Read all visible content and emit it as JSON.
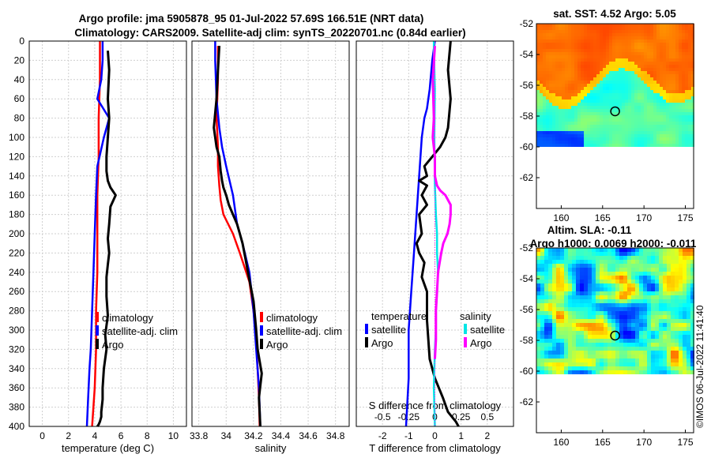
{
  "figure_title_line1": "Argo profile: jma 5905878_95 01-Jul-2022 57.69S 166.51E (NRT data)",
  "figure_title_line2": "Climatology: CARS2009. Satellite-adj clim: synTS_20220701.nc (0.84d earlier)",
  "watermark": "©IMOS 06-Jul-2022 11:41:40",
  "colors": {
    "climatology": "#ff0000",
    "satellite": "#0000ff",
    "argo": "#000000",
    "sat_salinity": "#00e5e5",
    "argo_salinity": "#ff00ff"
  },
  "chart_data": [
    {
      "id": "temperature",
      "type": "line",
      "xlabel": "temperature (deg C)",
      "ylabel": "",
      "xlim": [
        -1,
        11
      ],
      "ylim": [
        400,
        0
      ],
      "xticks": [
        0,
        2,
        4,
        6,
        8,
        10
      ],
      "yticks": [
        0,
        20,
        40,
        60,
        80,
        100,
        120,
        140,
        160,
        180,
        200,
        220,
        240,
        260,
        280,
        300,
        320,
        340,
        360,
        380,
        400
      ],
      "grid": true,
      "legend": {
        "placement": "lower-middle",
        "entries": [
          "climatology",
          "satellite-adj. clim",
          "Argo"
        ]
      },
      "series": [
        {
          "name": "climatology",
          "color": "#ff0000",
          "x": [
            4.4,
            4.4,
            4.3,
            4.3,
            4.2,
            4.2,
            4.2,
            4.1,
            4.1,
            4.0,
            3.8
          ],
          "y": [
            0,
            40,
            80,
            120,
            160,
            200,
            240,
            280,
            320,
            360,
            400
          ]
        },
        {
          "name": "satellite-adj. clim",
          "color": "#0000ff",
          "x": [
            4.6,
            4.6,
            4.5,
            4.2,
            5.1,
            4.7,
            4.2,
            4.1,
            4.0,
            3.9,
            3.8,
            3.7,
            3.6,
            3.5,
            3.4
          ],
          "y": [
            0,
            20,
            40,
            60,
            80,
            100,
            130,
            160,
            200,
            240,
            280,
            320,
            340,
            370,
            400
          ]
        },
        {
          "name": "Argo",
          "color": "#000000",
          "x": [
            5.0,
            5.1,
            5.0,
            5.1,
            5.0,
            4.9,
            4.9,
            5.0,
            5.2,
            5.6,
            5.2,
            5.1,
            5.0,
            5.1,
            5.0,
            4.9,
            4.9,
            5.0,
            4.8,
            4.9,
            4.7,
            4.6,
            4.6,
            4.5,
            4.5,
            4.4,
            4.3,
            4.2
          ],
          "y": [
            10,
            30,
            60,
            80,
            100,
            120,
            135,
            145,
            152,
            160,
            172,
            190,
            205,
            220,
            232,
            245,
            265,
            285,
            305,
            320,
            340,
            360,
            372,
            385,
            390,
            395,
            398,
            400
          ]
        }
      ]
    },
    {
      "id": "salinity",
      "type": "line",
      "xlabel": "salinity",
      "ylabel": "",
      "xlim": [
        33.75,
        34.9
      ],
      "ylim": [
        400,
        0
      ],
      "xticks": [
        33.8,
        34,
        34.2,
        34.4,
        34.6,
        34.8
      ],
      "xticklabels": [
        "33.8",
        "34",
        "34.2",
        "34.4",
        "34.6",
        "34.8"
      ],
      "grid": true,
      "legend": {
        "placement": "lower-right",
        "entries": [
          "climatology",
          "satellite-adj. clim",
          "Argo"
        ]
      },
      "series": [
        {
          "name": "climatology",
          "color": "#ff0000",
          "x": [
            33.94,
            33.94,
            33.93,
            33.94,
            33.94,
            33.95,
            33.96,
            33.98,
            34.05,
            34.1,
            34.17,
            34.2,
            34.22,
            34.23,
            34.24,
            34.245
          ],
          "y": [
            5,
            40,
            80,
            110,
            130,
            150,
            165,
            180,
            200,
            220,
            250,
            280,
            310,
            340,
            370,
            400
          ]
        },
        {
          "name": "satellite-adj. clim",
          "color": "#0000ff",
          "x": [
            33.92,
            33.92,
            33.93,
            33.95,
            33.97,
            34.0,
            34.05,
            34.08,
            34.12,
            34.17,
            34.2,
            34.22,
            34.24,
            34.25
          ],
          "y": [
            0,
            20,
            60,
            90,
            110,
            130,
            160,
            190,
            210,
            240,
            280,
            320,
            360,
            400
          ]
        },
        {
          "name": "Argo",
          "color": "#000000",
          "x": [
            33.95,
            33.94,
            33.93,
            33.91,
            33.93,
            33.95,
            33.96,
            33.97,
            33.98,
            34.0,
            34.02,
            34.05,
            34.08,
            34.1,
            34.12,
            34.14,
            34.16,
            34.2,
            34.22,
            34.23,
            34.26,
            34.24,
            34.25
          ],
          "y": [
            5,
            30,
            60,
            90,
            110,
            120,
            135,
            145,
            152,
            160,
            170,
            180,
            190,
            200,
            210,
            225,
            240,
            270,
            300,
            320,
            345,
            370,
            400
          ]
        }
      ]
    },
    {
      "id": "difference",
      "type": "line",
      "xlabel": "T difference from climatology",
      "top_axis_label": "S difference from climatology",
      "xlim": [
        -3,
        3
      ],
      "top_xlim": [
        -0.75,
        0.75
      ],
      "ylim": [
        400,
        0
      ],
      "xticks": [
        -2,
        -1,
        0,
        1,
        2
      ],
      "xticklabels": [
        "-2",
        "-1",
        "0",
        "1",
        "2"
      ],
      "top_xticks": [
        -0.5,
        -0.25,
        0,
        0.25,
        0.5
      ],
      "top_xticklabels": [
        "-0.5",
        "-0.25",
        "0",
        "0.25",
        "0.5"
      ],
      "grid": true,
      "legend": {
        "placement": "lower-middle",
        "temperature_title": "temperature",
        "salinity_title": "salinity",
        "entries": [
          "satellite",
          "Argo",
          "satellite",
          "Argo"
        ]
      },
      "series": [
        {
          "name": "T satellite",
          "color": "#0000ff",
          "axis": "T",
          "x": [
            0.0,
            -0.1,
            -0.2,
            -0.3,
            -0.4,
            -0.5,
            -0.6,
            -0.7,
            -0.8,
            -0.9,
            -1.0,
            -1.0,
            -1.1
          ],
          "y": [
            0,
            20,
            50,
            70,
            80,
            100,
            140,
            180,
            220,
            260,
            300,
            350,
            400
          ]
        },
        {
          "name": "T Argo",
          "color": "#000000",
          "axis": "T",
          "x": [
            0.6,
            0.5,
            0.6,
            0.5,
            0.4,
            0.2,
            -0.1,
            -0.4,
            -0.3,
            -0.6,
            -0.3,
            -0.5,
            -0.3,
            -0.6,
            -0.5,
            -0.7,
            -0.6,
            -0.4,
            -0.5,
            -0.3,
            -0.3,
            -0.2,
            0.0,
            0.3,
            0.5,
            0.8,
            0.9
          ],
          "y": [
            0,
            30,
            60,
            90,
            100,
            110,
            120,
            130,
            140,
            145,
            150,
            160,
            170,
            180,
            200,
            210,
            220,
            230,
            245,
            260,
            290,
            330,
            350,
            370,
            385,
            395,
            400
          ]
        },
        {
          "name": "S satellite",
          "color": "#00e5e5",
          "axis": "S",
          "x": [
            -0.01,
            -0.01,
            0.0,
            -0.005,
            0.0,
            0.01,
            0.02,
            0.02,
            0.03,
            0.02,
            0.01,
            0.01,
            0.0,
            -0.01,
            0.0
          ],
          "y": [
            0,
            10,
            50,
            100,
            150,
            180,
            200,
            220,
            240,
            260,
            280,
            300,
            320,
            360,
            400
          ]
        },
        {
          "name": "S Argo",
          "color": "#ff00ff",
          "axis": "S",
          "x": [
            0.0,
            -0.02,
            -0.01,
            -0.02,
            0.0,
            0.0,
            0.02,
            0.05,
            0.1,
            0.15,
            0.15,
            0.14,
            0.12,
            0.08,
            0.06,
            0.03,
            0.02,
            0.01,
            0.01,
            0.0
          ],
          "y": [
            5,
            40,
            80,
            100,
            120,
            140,
            150,
            155,
            160,
            170,
            180,
            190,
            200,
            210,
            220,
            240,
            260,
            280,
            310,
            330
          ]
        }
      ]
    },
    {
      "id": "sst_map",
      "type": "heatmap",
      "title": "sat. SST: 4.52 Argo: 5.05",
      "xlim": [
        157,
        176
      ],
      "ylim": [
        -64,
        -52
      ],
      "xticks": [
        160,
        165,
        170,
        175
      ],
      "yticks": [
        -52,
        -54,
        -56,
        -58,
        -60,
        -62
      ],
      "data_rows_lat": [
        -52,
        -60
      ],
      "marker": {
        "lon": 166.51,
        "lat": -57.69
      }
    },
    {
      "id": "sla_map",
      "type": "heatmap",
      "title": "Altim. SLA: -0.11",
      "subtitle": "Argo h1000: 0.0069 h2000: -0.011",
      "xlim": [
        157,
        176
      ],
      "ylim": [
        -64,
        -52
      ],
      "xticks": [
        160,
        165,
        170,
        175
      ],
      "yticks": [
        -52,
        -54,
        -56,
        -58,
        -60,
        -62
      ],
      "data_rows_lat": [
        -52,
        -60
      ],
      "marker": {
        "lon": 166.51,
        "lat": -57.69
      }
    }
  ]
}
